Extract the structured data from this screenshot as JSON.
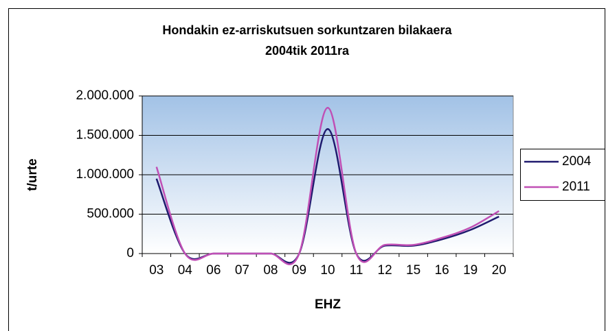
{
  "chart_data": {
    "type": "line",
    "title": "Hondakin ez-arriskutsuen sorkuntzaren bilakaera",
    "subtitle": "2004tik 2011ra",
    "x_label": "EHZ",
    "y_label": "t/urte",
    "categories": [
      "03",
      "04",
      "06",
      "07",
      "08",
      "09",
      "10",
      "11",
      "12",
      "15",
      "16",
      "19",
      "20"
    ],
    "series": [
      {
        "name": "2004",
        "color": "#1f1a6e",
        "values": [
          950000,
          0,
          0,
          0,
          0,
          0,
          1580000,
          0,
          100000,
          100000,
          180000,
          300000,
          470000
        ]
      },
      {
        "name": "2011",
        "color": "#c04fb5",
        "values": [
          1100000,
          0,
          0,
          0,
          0,
          0,
          1850000,
          0,
          110000,
          110000,
          200000,
          330000,
          540000
        ]
      }
    ],
    "ylim": [
      0,
      2000000
    ],
    "yticks": [
      0,
      {
        "value": 500000,
        "label": "500.000"
      },
      {
        "value": 1000000,
        "label": "1.000.000"
      },
      {
        "value": 1500000,
        "label": "1.500.000"
      },
      {
        "value": 2000000,
        "label": "2.000.000"
      }
    ],
    "grid": true,
    "legend": "right"
  }
}
